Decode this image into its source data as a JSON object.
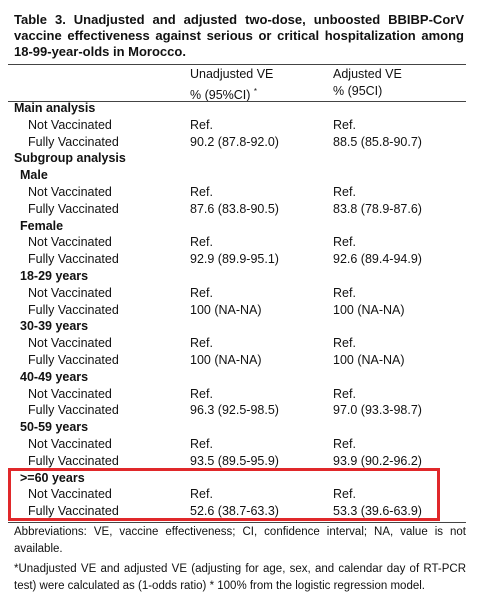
{
  "title": "Table 3. Unadjusted and adjusted two-dose, unboosted BBIBP-CorV vaccine effectiveness against serious or critical hospitalization among 18-99-year-olds in Morocco.",
  "columns": [
    {
      "line1": "Unadjusted VE",
      "line2": "% (95%CI)",
      "note": "*"
    },
    {
      "line1": "Adjusted VE",
      "line2": "% (95CI)"
    }
  ],
  "sections": [
    {
      "heading": "Main analysis",
      "rows": [
        [
          "Not Vaccinated",
          "Ref.",
          "Ref."
        ],
        [
          "Fully Vaccinated",
          "90.2 (87.8-92.0)",
          "88.5 (85.8-90.7)"
        ]
      ]
    },
    {
      "heading": "Subgroup analysis",
      "groups": [
        {
          "heading": "Male",
          "rows": [
            [
              "Not Vaccinated",
              "Ref.",
              "Ref."
            ],
            [
              "Fully Vaccinated",
              "87.6 (83.8-90.5)",
              "83.8 (78.9-87.6)"
            ]
          ]
        },
        {
          "heading": "Female",
          "rows": [
            [
              "Not Vaccinated",
              "Ref.",
              "Ref."
            ],
            [
              "Fully Vaccinated",
              "92.9 (89.9-95.1)",
              "92.6 (89.4-94.9)"
            ]
          ]
        },
        {
          "heading": "18-29 years",
          "rows": [
            [
              "Not Vaccinated",
              "Ref.",
              "Ref."
            ],
            [
              "Fully Vaccinated",
              "100 (NA-NA)",
              "100 (NA-NA)"
            ]
          ]
        },
        {
          "heading": "30-39 years",
          "rows": [
            [
              "Not Vaccinated",
              "Ref.",
              "Ref."
            ],
            [
              "Fully Vaccinated",
              "100 (NA-NA)",
              "100 (NA-NA)"
            ]
          ]
        },
        {
          "heading": "40-49 years",
          "rows": [
            [
              "Not Vaccinated",
              "Ref.",
              "Ref."
            ],
            [
              "Fully Vaccinated",
              "96.3 (92.5-98.5)",
              "97.0 (93.3-98.7)"
            ]
          ]
        },
        {
          "heading": "50-59 years",
          "rows": [
            [
              "Not Vaccinated",
              "Ref.",
              "Ref."
            ],
            [
              "Fully Vaccinated",
              "93.5 (89.5-95.9)",
              "93.9 (90.2-96.2)"
            ]
          ]
        },
        {
          "heading": ">=60 years",
          "rows": [
            [
              "Not Vaccinated",
              "Ref.",
              "Ref."
            ],
            [
              "Fully Vaccinated",
              "52.6 (38.7-63.3)",
              "53.3 (39.6-63.9)"
            ]
          ]
        }
      ]
    }
  ],
  "footnotes": [
    "Abbreviations: VE, vaccine effectiveness; CI, confidence interval; NA, value is not available.",
    "*Unadjusted VE and adjusted VE (adjusting for age, sex, and calendar day of RT-PCR test) were calculated as (1-odds ratio) * 100% from the logistic regression model."
  ]
}
